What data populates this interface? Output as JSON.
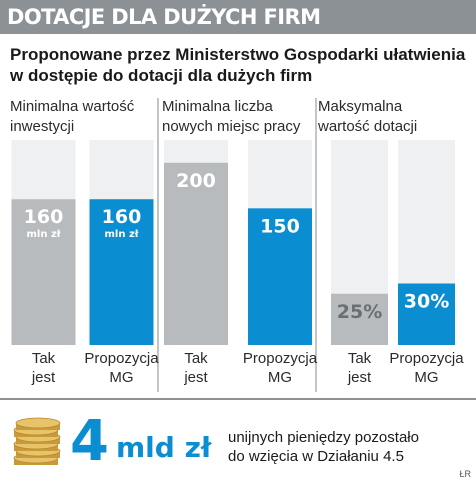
{
  "banner": {
    "title": "DOTACJE DLA DUŻYCH FIRM"
  },
  "subtitle": {
    "line1": "Proponowane przez Ministerstwo Gospodarki ułatwienia",
    "line2": "w dostępie do dotacji dla dużych firm"
  },
  "chart_data": [
    {
      "type": "bar",
      "title_lines": [
        "Minimalna wartość",
        "inwestycji"
      ],
      "categories": [
        [
          "Tak",
          "jest"
        ],
        [
          "Propozycja",
          "MG"
        ]
      ],
      "values": [
        160,
        160
      ],
      "value_labels": [
        "160",
        "160"
      ],
      "unit_label": "mln zł",
      "ylim": [
        0,
        225
      ]
    },
    {
      "type": "bar",
      "title_lines": [
        "Minimalna liczba",
        "nowych miejsc pracy"
      ],
      "categories": [
        [
          "Tak",
          "jest"
        ],
        [
          "Propozycja",
          "MG"
        ]
      ],
      "values": [
        200,
        150
      ],
      "value_labels": [
        "200",
        "150"
      ],
      "unit_label": "",
      "ylim": [
        0,
        225
      ]
    },
    {
      "type": "bar",
      "title_lines": [
        "Maksymalna",
        "wartość dotacji"
      ],
      "categories": [
        [
          "Tak",
          "jest"
        ],
        [
          "Propozycja",
          "MG"
        ]
      ],
      "values": [
        25,
        30
      ],
      "value_labels": [
        "25%",
        "30%"
      ],
      "unit_label": "",
      "ylim": [
        0,
        100
      ]
    }
  ],
  "colors": {
    "current": "#b7bbbe",
    "proposal": "#0b8ed1",
    "panel_bg": "#eef0f1",
    "banner": "#8c9195"
  },
  "summary": {
    "number": "4",
    "unit": "mld zł",
    "note_line1": "unijnych pieniędzy pozostało",
    "note_line2": "do wzięcia w Działaniu 4.5"
  },
  "credit": "ŁR",
  "icons": {
    "coins": "coin-stack-icon"
  }
}
